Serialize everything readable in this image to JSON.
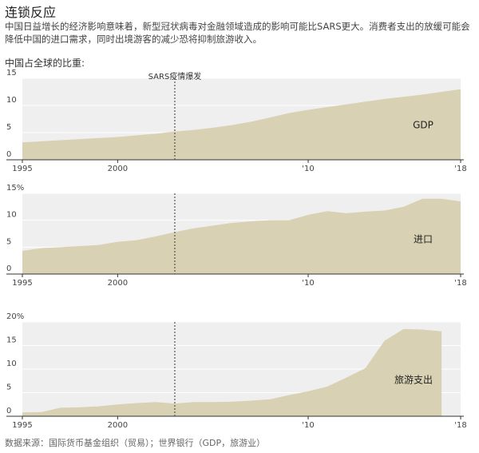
{
  "title": "连锁反应",
  "description": "中国日益增长的经济影响意味着，新型冠状病毒对金融领域造成的影响可能比SARS更大。消费者支出的放缓可能会降低中国的进口需求，同时出境游客的减少恐将抑制旅游收入。",
  "subtitle": "中国占全球的比重:",
  "source": "数据来源：国际货币基金组织（贸易）；世界银行（GDP，旅游业）",
  "chart_data": [
    {
      "type": "area",
      "label": "GDP",
      "color": "#d8d1b3",
      "x": [
        1995,
        1996,
        1997,
        1998,
        1999,
        2000,
        2001,
        2002,
        2003,
        2004,
        2005,
        2006,
        2007,
        2008,
        2009,
        2010,
        2011,
        2012,
        2013,
        2014,
        2015,
        2016,
        2017,
        2018
      ],
      "values": [
        3.2,
        3.4,
        3.6,
        3.8,
        4.0,
        4.2,
        4.5,
        4.8,
        5.2,
        5.5,
        5.9,
        6.4,
        7.0,
        7.8,
        8.6,
        9.2,
        9.7,
        10.2,
        10.7,
        11.2,
        11.6,
        12.0,
        12.5,
        13.0
      ],
      "xlim": [
        1995,
        2018
      ],
      "xticks": [
        1995,
        2000,
        {
          "value": 2010,
          "label": "'10"
        },
        {
          "value": 2018,
          "label": "'18"
        }
      ],
      "ylim": [
        0,
        15
      ],
      "yticks": [
        0,
        5,
        10,
        15
      ],
      "grid": true,
      "annotations": [
        {
          "text": "SARS疫情爆发",
          "x": 2003
        }
      ]
    },
    {
      "type": "area",
      "label": "进口",
      "color": "#d8d1b3",
      "x": [
        1995,
        1996,
        1997,
        1998,
        1999,
        2000,
        2001,
        2002,
        2003,
        2004,
        2005,
        2006,
        2007,
        2008,
        2009,
        2010,
        2011,
        2012,
        2013,
        2014,
        2015,
        2016,
        2017,
        2018
      ],
      "values": [
        4.3,
        4.8,
        5.0,
        5.2,
        5.4,
        6.0,
        6.3,
        7.0,
        7.8,
        8.5,
        9.0,
        9.5,
        9.8,
        10.0,
        10.0,
        11.0,
        11.7,
        11.3,
        11.6,
        11.8,
        12.5,
        14.0,
        14.0,
        13.5
      ],
      "xlim": [
        1995,
        2018
      ],
      "xticks": [
        1995,
        2000,
        {
          "value": 2010,
          "label": "'10"
        },
        {
          "value": 2018,
          "label": "'18"
        }
      ],
      "ylim": [
        0,
        15
      ],
      "yticks": [
        0,
        5,
        10,
        {
          "value": 15,
          "label": "15%"
        }
      ],
      "grid": true,
      "vlines": [
        2003
      ]
    },
    {
      "type": "area",
      "label": "旅游支出",
      "color": "#d8d1b3",
      "x": [
        1995,
        1996,
        1997,
        1998,
        1999,
        2000,
        2001,
        2002,
        2003,
        2004,
        2005,
        2006,
        2007,
        2008,
        2009,
        2010,
        2011,
        2012,
        2013,
        2014,
        2015,
        2016,
        2017,
        2018
      ],
      "values": [
        0.8,
        0.9,
        1.8,
        1.9,
        2.1,
        2.5,
        2.8,
        3.0,
        2.7,
        3.0,
        3.0,
        3.1,
        3.3,
        3.6,
        4.5,
        5.3,
        6.3,
        8.2,
        10.2,
        16.0,
        18.5,
        18.4,
        18.0,
        null
      ],
      "xlim": [
        1995,
        2018
      ],
      "xticks": [
        1995,
        2000,
        {
          "value": 2010,
          "label": "'10"
        },
        {
          "value": 2018,
          "label": "'18"
        }
      ],
      "ylim": [
        0,
        20
      ],
      "yticks": [
        0,
        5,
        10,
        15,
        {
          "value": 20,
          "label": "20%"
        }
      ],
      "grid": true,
      "vlines": [
        2003
      ]
    }
  ]
}
